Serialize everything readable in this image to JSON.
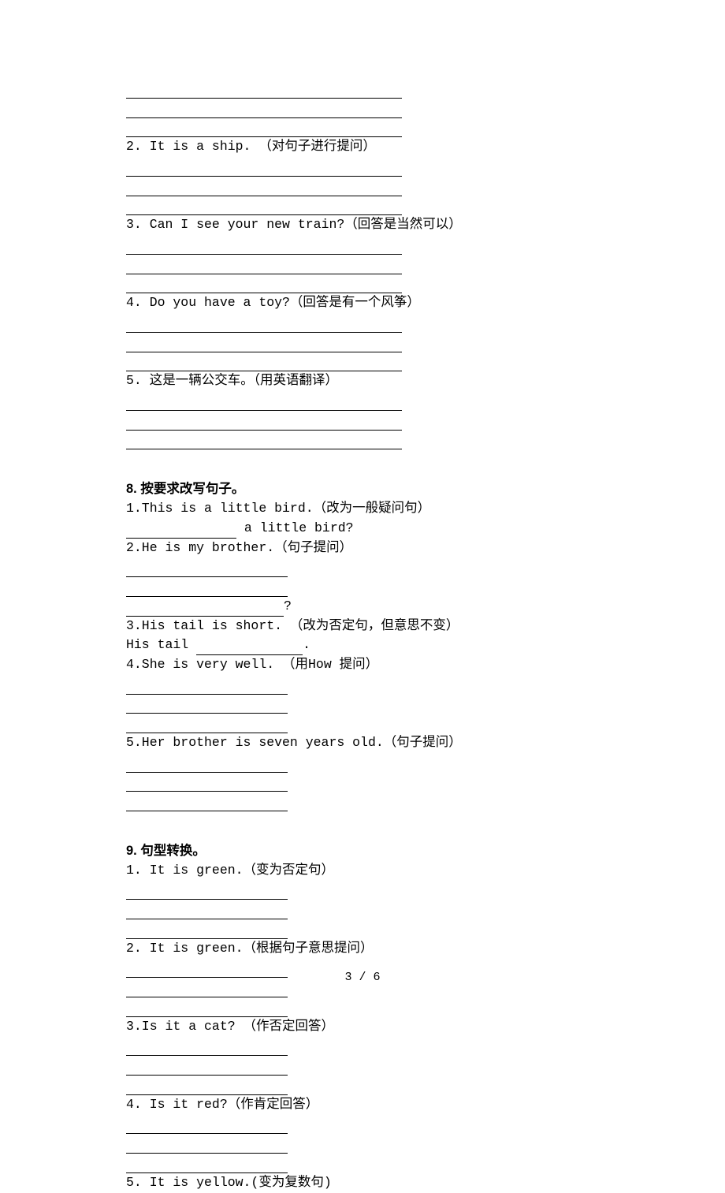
{
  "top": {
    "q2": "2. It is a ship. （对句子进行提问）",
    "q3": "3. Can I see your new train?（回答是当然可以）",
    "q4": "4. Do you have a toy?（回答是有一个风筝）",
    "q5": "5. 这是一辆公交车。（用英语翻译）"
  },
  "s8": {
    "title": "8. 按要求改写句子。",
    "q1": "1.This is a little bird.（改为一般疑问句）",
    "q1_tail": " a little bird?",
    "q2": "2.He is my brother.（句子提问）",
    "q2_qmark": "?",
    "q3": "3.His tail is short. （改为否定句，但意思不变）",
    "q3_pre": "His tail ",
    "q3_post": ".",
    "q4": "4.She is very well. （用How 提问）",
    "q5": "5.Her brother is seven years old.（句子提问）"
  },
  "s9": {
    "title": "9. 句型转换。",
    "q1": "1. It is green.（变为否定句）",
    "q2": "2. It is green.（根据句子意思提问）",
    "q3": "3.Is it a cat? （作否定回答）",
    "q4": "4. Is it red?（作肯定回答）",
    "q5": "5. It is yellow.(变为复数句)"
  },
  "footer": "3 / 6"
}
